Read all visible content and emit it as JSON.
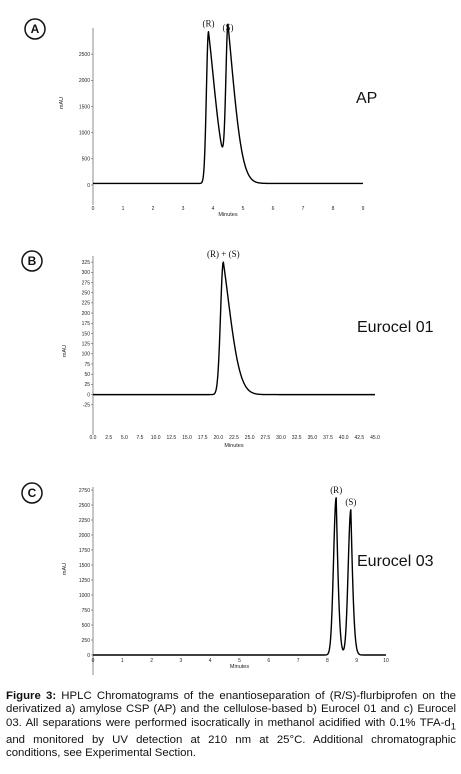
{
  "chart_data": [
    {
      "type": "line",
      "panel_letter": "A",
      "name": "AP",
      "xlabel": "Minutes",
      "ylabel": "mAU",
      "xlim": [
        0,
        9
      ],
      "ylim": [
        0,
        3000
      ],
      "xticks": [
        "0",
        "1",
        "2",
        "3",
        "4",
        "5",
        "6",
        "7",
        "8",
        "9"
      ],
      "yticks": [
        {
          "v": 0,
          "t": "0"
        },
        {
          "v": 500,
          "t": "500"
        },
        {
          "v": 1000,
          "t": "1000"
        },
        {
          "v": 1500,
          "t": "1500"
        },
        {
          "v": 2000,
          "t": "2000"
        },
        {
          "v": 2500,
          "t": "2500"
        }
      ],
      "baseline": 30,
      "peaks": [
        {
          "label": "(R)",
          "rt": 3.85,
          "height": 2900,
          "width": 0.07,
          "tail": 0.6
        },
        {
          "label": "(S)",
          "rt": 4.5,
          "height": 2830,
          "width": 0.07,
          "tail": 0.6
        }
      ]
    },
    {
      "type": "line",
      "panel_letter": "B",
      "name": "Eurocel 01",
      "xlabel": "Minutes",
      "ylabel": "mAU",
      "xlim": [
        0,
        45
      ],
      "ylim": [
        -50,
        340
      ],
      "xticks": [
        "0.0",
        "2.5",
        "5.0",
        "7.5",
        "10.0",
        "12.5",
        "15.0",
        "17.5",
        "20.0",
        "22.5",
        "25.0",
        "27.5",
        "30.0",
        "32.5",
        "35.0",
        "37.5",
        "40.0",
        "42.5",
        "45.0"
      ],
      "yticks": [
        {
          "v": -25,
          "t": "-25"
        },
        {
          "v": 0,
          "t": "0"
        },
        {
          "v": 25,
          "t": "25"
        },
        {
          "v": 50,
          "t": "50"
        },
        {
          "v": 75,
          "t": "75"
        },
        {
          "v": 100,
          "t": "100"
        },
        {
          "v": 125,
          "t": "125"
        },
        {
          "v": 150,
          "t": "150"
        },
        {
          "v": 175,
          "t": "175"
        },
        {
          "v": 200,
          "t": "200"
        },
        {
          "v": 225,
          "t": "225"
        },
        {
          "v": 250,
          "t": "250"
        },
        {
          "v": 275,
          "t": "275"
        },
        {
          "v": 300,
          "t": "300"
        },
        {
          "v": 325,
          "t": "325"
        }
      ],
      "baseline": 0,
      "peaks": [
        {
          "label": "(R) + (S)",
          "rt": 20.8,
          "height": 325,
          "width": 0.45,
          "tail": 3.1
        }
      ]
    },
    {
      "type": "line",
      "panel_letter": "C",
      "name": "Eurocel 03",
      "xlabel": "Minutes",
      "ylabel": "mAU",
      "xlim": [
        0,
        10
      ],
      "ylim": [
        0,
        2800
      ],
      "xticks": [
        "0",
        "1",
        "2",
        "3",
        "4",
        "5",
        "6",
        "7",
        "8",
        "9",
        "10"
      ],
      "yticks": [
        {
          "v": 0,
          "t": "0"
        },
        {
          "v": 250,
          "t": "250"
        },
        {
          "v": 500,
          "t": "500"
        },
        {
          "v": 750,
          "t": "750"
        },
        {
          "v": 1000,
          "t": "1000"
        },
        {
          "v": 1250,
          "t": "1250"
        },
        {
          "v": 1500,
          "t": "1500"
        },
        {
          "v": 1750,
          "t": "1750"
        },
        {
          "v": 2000,
          "t": "2000"
        },
        {
          "v": 2250,
          "t": "2250"
        },
        {
          "v": 2500,
          "t": "2500"
        },
        {
          "v": 2750,
          "t": "2750"
        }
      ],
      "baseline": 0,
      "peaks": [
        {
          "label": "(R)",
          "rt": 8.3,
          "height": 2620,
          "width": 0.09,
          "tail": 0.12
        },
        {
          "label": "(S)",
          "rt": 8.8,
          "height": 2420,
          "width": 0.09,
          "tail": 0.12
        }
      ]
    }
  ],
  "caption": {
    "label": "Figure 3:",
    "text_1": " HPLC Chromatograms of the enantioseparation of (R/S)-flurbiprofen on the derivatized a) amylose CSP (AP) and the cellulose-based b) Eurocel 01 and c) Eurocel 03. All separations were performed isocratically in methanol acidified with 0.1% TFA-d",
    "subscript": "1",
    "text_2": " and monitored by UV detection at 210 nm at 25°C. Additional chromatographic conditions, see Experimental Section."
  }
}
